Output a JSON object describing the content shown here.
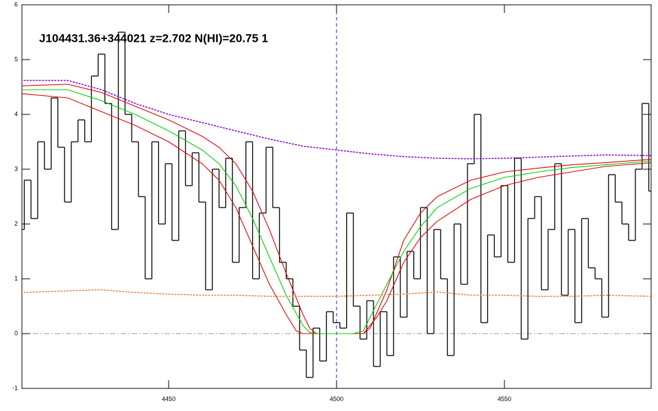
{
  "chart_data": {
    "type": "spectrum",
    "annotation": "J104431.36+344021 z=2.702 N(HI)=20.75 1",
    "xlim": [
      4406.3,
      4593.7
    ],
    "ylim": [
      -1,
      6
    ],
    "xticks": [
      4450,
      4500,
      4550
    ],
    "yticks": [
      -1,
      0,
      1,
      2,
      3,
      4,
      5,
      6
    ],
    "vline": 4500,
    "vline_color": "#2020c0",
    "hline": 0,
    "hline_color": "#999999",
    "series": [
      {
        "style": "step",
        "color": "#000000",
        "x": [
          4406,
          4408,
          4410,
          4412,
          4414,
          4416,
          4418,
          4420,
          4422,
          4424,
          4426,
          4428,
          4430,
          4432,
          4434,
          4436,
          4438,
          4440,
          4442,
          4444,
          4446,
          4448,
          4450,
          4452,
          4454,
          4456,
          4458,
          4460,
          4462,
          4464,
          4466,
          4468,
          4470,
          4472,
          4474,
          4476,
          4478,
          4480,
          4482,
          4484,
          4486,
          4488,
          4490,
          4492,
          4494,
          4496,
          4498,
          4500,
          4502,
          4504,
          4506,
          4508,
          4510,
          4512,
          4514,
          4516,
          4518,
          4520,
          4522,
          4524,
          4526,
          4528,
          4530,
          4532,
          4534,
          4536,
          4538,
          4540,
          4542,
          4544,
          4546,
          4548,
          4550,
          4552,
          4554,
          4556,
          4558,
          4560,
          4562,
          4564,
          4566,
          4568,
          4570,
          4572,
          4574,
          4576,
          4578,
          4580,
          4582,
          4584,
          4586,
          4588,
          4590,
          4592,
          4594
        ],
        "values": [
          1.9,
          2.8,
          2.1,
          3.5,
          3.0,
          4.3,
          3.4,
          2.4,
          3.5,
          3.9,
          3.5,
          4.7,
          5.1,
          4.2,
          1.9,
          5.5,
          4.0,
          3.5,
          2.5,
          1.0,
          3.5,
          2.0,
          3.1,
          1.7,
          3.7,
          2.7,
          3.3,
          2.4,
          0.8,
          3.0,
          2.3,
          3.2,
          1.3,
          2.3,
          3.5,
          1.0,
          2.2,
          3.4,
          2.3,
          1.3,
          1.0,
          0.5,
          -0.3,
          -0.8,
          0.1,
          -0.5,
          0.4,
          0.2,
          0.1,
          2.2,
          0.5,
          -0.1,
          0.6,
          -0.6,
          0.4,
          -0.4,
          1.4,
          0.3,
          1.5,
          1.0,
          2.3,
          0.0,
          1.9,
          1.0,
          -0.4,
          2.0,
          0.9,
          3.1,
          4.0,
          0.2,
          1.8,
          1.4,
          2.7,
          1.3,
          3.2,
          -0.1,
          2.1,
          2.5,
          0.8,
          1.9,
          3.1,
          0.7,
          1.9,
          0.2,
          2.1,
          1.2,
          1.0,
          0.3,
          2.9,
          2.4,
          2.0,
          1.7,
          3.0,
          4.2,
          2.6
        ]
      },
      {
        "style": "line",
        "color": "#dd0000",
        "x": [
          4406,
          4420,
          4430,
          4440,
          4450,
          4460,
          4465,
          4470,
          4475,
          4480,
          4485,
          4490,
          4492,
          4494,
          4508,
          4510,
          4515,
          4520,
          4525,
          4530,
          4540,
          4550,
          4560,
          4570,
          4580,
          4594
        ],
        "values": [
          4.52,
          4.55,
          4.4,
          4.15,
          3.9,
          3.6,
          3.4,
          3.1,
          2.6,
          1.9,
          1.1,
          0.35,
          0.1,
          0,
          0,
          0.1,
          0.8,
          1.7,
          2.2,
          2.5,
          2.8,
          2.95,
          3.02,
          3.08,
          3.12,
          3.18
        ]
      },
      {
        "style": "line",
        "color": "#dd0000",
        "x": [
          4406,
          4420,
          4430,
          4440,
          4450,
          4460,
          4465,
          4470,
          4475,
          4480,
          4485,
          4488,
          4490,
          4505,
          4508,
          4512,
          4515,
          4520,
          4525,
          4530,
          4540,
          4550,
          4560,
          4570,
          4580,
          4594
        ],
        "values": [
          4.38,
          4.3,
          4.05,
          3.8,
          3.5,
          3.1,
          2.8,
          2.3,
          1.6,
          0.9,
          0.35,
          0.05,
          0,
          0,
          0,
          0.3,
          0.6,
          1.3,
          1.75,
          2.05,
          2.45,
          2.7,
          2.85,
          2.95,
          3.05,
          3.12
        ]
      },
      {
        "style": "line",
        "color": "#00cc00",
        "x": [
          4406,
          4420,
          4430,
          4440,
          4450,
          4460,
          4465,
          4470,
          4475,
          4480,
          4485,
          4490,
          4492,
          4495,
          4505,
          4508,
          4510,
          4515,
          4520,
          4525,
          4530,
          4540,
          4550,
          4560,
          4570,
          4580,
          4594
        ],
        "values": [
          4.45,
          4.45,
          4.25,
          4.0,
          3.7,
          3.35,
          3.1,
          2.7,
          2.1,
          1.4,
          0.7,
          0.15,
          0.02,
          0,
          0,
          0.05,
          0.3,
          0.9,
          1.5,
          1.95,
          2.3,
          2.65,
          2.85,
          2.95,
          3.03,
          3.08,
          3.15
        ]
      },
      {
        "style": "dotted",
        "color": "#8a00e0",
        "x": [
          4406,
          4420,
          4430,
          4440,
          4450,
          4460,
          4470,
          4480,
          4490,
          4500,
          4510,
          4520,
          4530,
          4540,
          4550,
          4560,
          4570,
          4580,
          4594
        ],
        "values": [
          4.62,
          4.62,
          4.45,
          4.2,
          4.0,
          3.85,
          3.7,
          3.55,
          3.42,
          3.35,
          3.28,
          3.23,
          3.2,
          3.19,
          3.2,
          3.22,
          3.24,
          3.26,
          3.25
        ]
      },
      {
        "style": "dotted",
        "color": "#f08040",
        "x": [
          4406,
          4420,
          4430,
          4440,
          4450,
          4460,
          4470,
          4480,
          4490,
          4500,
          4510,
          4520,
          4530,
          4540,
          4550,
          4560,
          4570,
          4580,
          4594
        ],
        "values": [
          0.75,
          0.78,
          0.8,
          0.75,
          0.72,
          0.7,
          0.7,
          0.68,
          0.68,
          0.68,
          0.7,
          0.72,
          0.76,
          0.7,
          0.7,
          0.68,
          0.68,
          0.7,
          0.68
        ]
      }
    ]
  }
}
